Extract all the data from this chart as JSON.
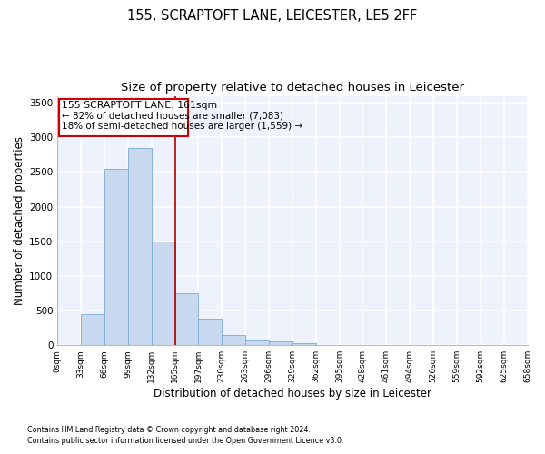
{
  "title1": "155, SCRAPTOFT LANE, LEICESTER, LE5 2FF",
  "title2": "Size of property relative to detached houses in Leicester",
  "xlabel": "Distribution of detached houses by size in Leicester",
  "ylabel": "Number of detached properties",
  "bar_values": [
    5,
    450,
    2550,
    2850,
    1500,
    750,
    380,
    150,
    80,
    60,
    30,
    0,
    0,
    0,
    0,
    0,
    0,
    0,
    0,
    0
  ],
  "bar_color": "#c8d8ee",
  "bar_edge_color": "#7aaad0",
  "x_labels": [
    "0sqm",
    "33sqm",
    "66sqm",
    "99sqm",
    "132sqm",
    "165sqm",
    "197sqm",
    "230sqm",
    "263sqm",
    "296sqm",
    "329sqm",
    "362sqm",
    "395sqm",
    "428sqm",
    "461sqm",
    "494sqm",
    "526sqm",
    "559sqm",
    "592sqm",
    "625sqm",
    "658sqm"
  ],
  "ylim": [
    0,
    3600
  ],
  "yticks": [
    0,
    500,
    1000,
    1500,
    2000,
    2500,
    3000,
    3500
  ],
  "footnote1": "Contains HM Land Registry data © Crown copyright and database right 2024.",
  "footnote2": "Contains public sector information licensed under the Open Government Licence v3.0.",
  "background_color": "#eef2fc",
  "grid_color": "#ffffff",
  "title1_fontsize": 10.5,
  "title2_fontsize": 9.5,
  "xlabel_fontsize": 8.5,
  "ylabel_fontsize": 8.5,
  "ann_line1": "155 SCRAPTOFT LANE: 161sqm",
  "ann_line2": "← 82% of detached houses are smaller (7,083)",
  "ann_line3": "18% of semi-detached houses are larger (1,559) →"
}
